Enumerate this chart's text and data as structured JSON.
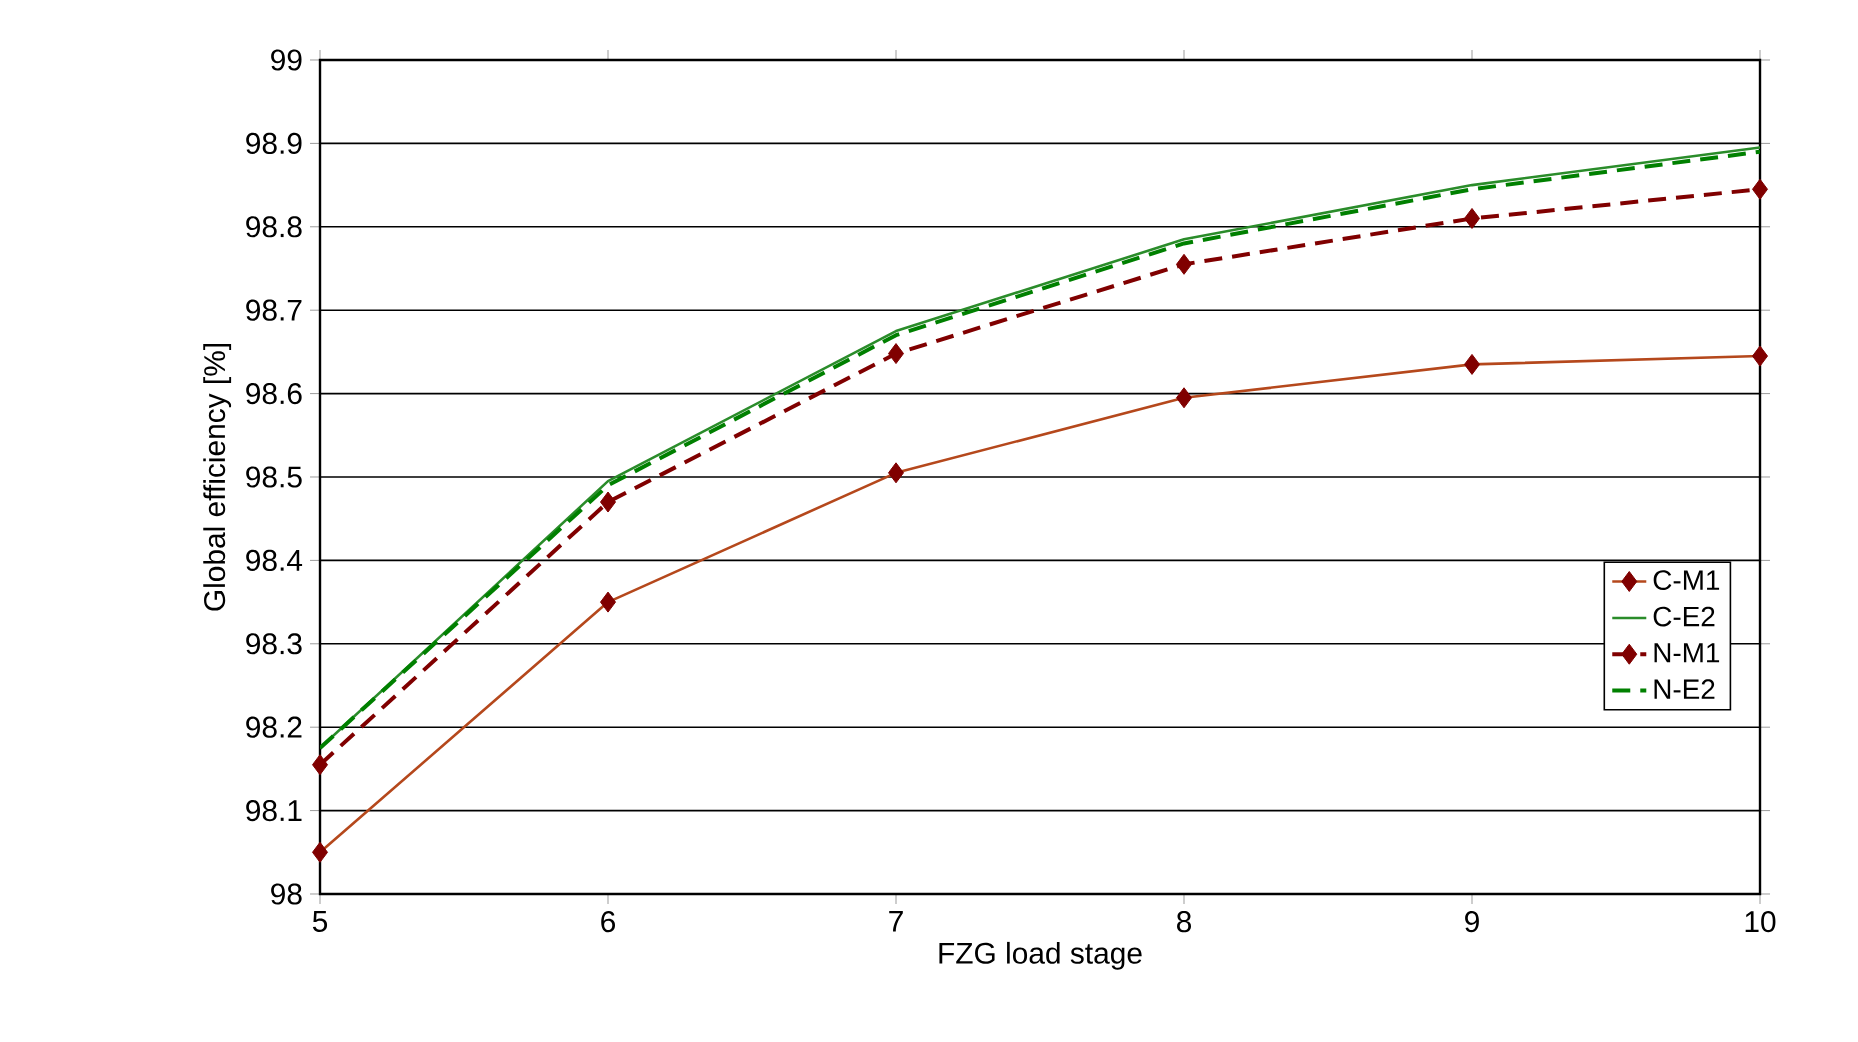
{
  "chart_data": {
    "type": "line",
    "xlabel": "FZG load stage",
    "ylabel": "Global efficiency [%]",
    "x": [
      5,
      6,
      7,
      8,
      9,
      10
    ],
    "series": [
      {
        "name": "C-M1",
        "color": "#b5481c",
        "marker": "diamond",
        "line_style": "solid",
        "values": [
          98.05,
          98.35,
          98.505,
          98.595,
          98.635,
          98.645
        ]
      },
      {
        "name": "C-E2",
        "color": "#2a8c2a",
        "marker": "none",
        "line_style": "solid",
        "values": [
          98.175,
          98.495,
          98.675,
          98.785,
          98.85,
          98.895
        ]
      },
      {
        "name": "N-M1",
        "color": "#800000",
        "marker": "diamond",
        "line_style": "dashed",
        "values": [
          98.155,
          98.47,
          98.648,
          98.755,
          98.81,
          98.845
        ]
      },
      {
        "name": "N-E2",
        "color": "#008000",
        "marker": "none",
        "line_style": "dashed",
        "values": [
          98.175,
          98.49,
          98.67,
          98.78,
          98.845,
          98.89
        ]
      }
    ],
    "xlim": [
      5,
      10
    ],
    "xticks": [
      5,
      6,
      7,
      8,
      9,
      10
    ],
    "ylim": [
      98,
      99
    ],
    "yticks": [
      98,
      98.1,
      98.2,
      98.3,
      98.4,
      98.5,
      98.6,
      98.7,
      98.8,
      98.9,
      99
    ],
    "grid": "y",
    "legend": "right"
  }
}
